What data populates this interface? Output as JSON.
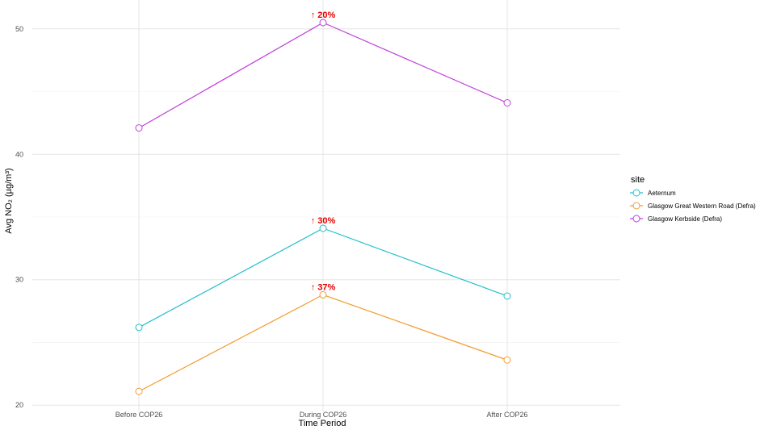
{
  "chart_data": {
    "type": "line",
    "categories": [
      "Before COP26",
      "During COP26",
      "After COP26"
    ],
    "xlabel": "Time Period",
    "ylabel": "Avg NO₂ (µg/m³)",
    "ylim": [
      19.5,
      52.3
    ],
    "yticks": [
      20,
      30,
      40,
      50
    ],
    "grid": true,
    "legend": {
      "title": "site",
      "placement": "right"
    },
    "series": [
      {
        "name": "Aeternum",
        "color": "#22bfcc",
        "values": [
          26.2,
          34.1,
          28.7
        ]
      },
      {
        "name": "Glasgow Great Western Road (Defra)",
        "color": "#f39b2e",
        "values": [
          21.1,
          28.8,
          23.6
        ]
      },
      {
        "name": "Glasgow Kerbside (Defra)",
        "color": "#c13ddc",
        "values": [
          42.1,
          50.5,
          44.1
        ]
      }
    ],
    "annotations": [
      {
        "series": 2,
        "category": 1,
        "text": "↑ 20%",
        "color": "#e60000"
      },
      {
        "series": 0,
        "category": 1,
        "text": "↑ 30%",
        "color": "#e60000"
      },
      {
        "series": 1,
        "category": 1,
        "text": "↑ 37%",
        "color": "#e60000"
      }
    ]
  }
}
